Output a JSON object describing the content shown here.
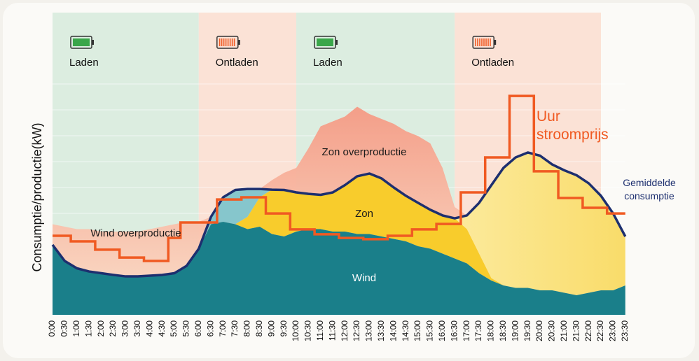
{
  "chart_data": {
    "type": "area",
    "ylabel": "Consumptie/productie(kW)",
    "categories": [
      "0:00",
      "0:30",
      "1:00",
      "1:30",
      "2:00",
      "2:30",
      "3:00",
      "3:30",
      "4:00",
      "4:30",
      "5:00",
      "5:30",
      "6:00",
      "6:30",
      "7:00",
      "7:30",
      "8:00",
      "8:30",
      "9:00",
      "9:30",
      "10:00",
      "10:30",
      "11:00",
      "11:30",
      "12:00",
      "12:30",
      "13:00",
      "13:30",
      "14:00",
      "14:30",
      "15:00",
      "15:30",
      "16:00",
      "16:30",
      "17:00",
      "17:30",
      "18:00",
      "18:30",
      "19:00",
      "19:30",
      "20:00",
      "20:30",
      "21:00",
      "21:30",
      "22:00",
      "22:30",
      "23:00",
      "23:30"
    ],
    "ylim": [
      0,
      100
    ],
    "y2lim": [
      0,
      100
    ],
    "bands": [
      {
        "label": "Laden",
        "start": 0,
        "end": 6,
        "color": "#dcede0",
        "icon_color": "#3aa64a"
      },
      {
        "label": "Ontladen",
        "start": 6,
        "end": 10,
        "color": "#fbe2d6",
        "icon_color": "#f05a22"
      },
      {
        "label": "Laden",
        "start": 10,
        "end": 16.5,
        "color": "#dcede0",
        "icon_color": "#3aa64a"
      },
      {
        "label": "Ontladen",
        "start": 16.5,
        "end": 22.5,
        "color": "#fbe2d6",
        "icon_color": "#f05a22"
      }
    ],
    "series": [
      {
        "name": "Wind",
        "color": "#1a7f8a",
        "values": [
          37,
          36,
          35,
          35,
          34,
          34,
          34,
          34,
          35,
          36,
          37,
          38,
          38,
          37,
          38,
          37,
          35,
          36,
          33,
          32,
          34,
          35,
          35,
          34,
          34,
          33,
          33,
          32,
          31,
          30,
          28,
          27,
          25,
          23,
          21,
          17,
          14,
          12,
          11,
          11,
          10,
          10,
          9,
          8,
          9,
          10,
          10,
          12
        ]
      },
      {
        "name": "Zon",
        "color": "#f8cc2c",
        "values": [
          0,
          0,
          0,
          0,
          0,
          0,
          0,
          0,
          0,
          0,
          0,
          0,
          0,
          0,
          0,
          0,
          5,
          12,
          22,
          26,
          26,
          33,
          42,
          45,
          47,
          52,
          49,
          48,
          47,
          45,
          45,
          43,
          35,
          21,
          14,
          8,
          1,
          0,
          0,
          0,
          0,
          0,
          0,
          0,
          0,
          0,
          0,
          0
        ]
      },
      {
        "name": "Gemiddelde consumptie",
        "color": "#1d2f6f",
        "values": [
          28.6,
          22,
          19,
          17.7,
          17,
          16.3,
          15.7,
          15.7,
          16,
          16.3,
          17,
          20,
          27,
          40,
          48,
          51,
          51.4,
          51.4,
          51.1,
          51,
          50,
          49.4,
          49,
          50,
          53,
          56.6,
          57.7,
          55.7,
          52,
          48.6,
          45.7,
          42.9,
          40.6,
          39.4,
          40.6,
          45.7,
          52.9,
          60,
          64.3,
          66.3,
          65,
          61.4,
          59,
          57,
          53.7,
          48.6,
          41.4,
          32
        ]
      },
      {
        "name": "Uur stroomprijs",
        "color": "#f05a22",
        "axis": "y2",
        "values": [
          32.3,
          32.3,
          30,
          30,
          26.6,
          26.6,
          23.4,
          23.4,
          22,
          22,
          31.4,
          37.7,
          37.7,
          37.7,
          47.1,
          47.1,
          48,
          48,
          41.4,
          41.4,
          34.9,
          34.9,
          32.9,
          32.9,
          31.4,
          31.4,
          30.9,
          30.9,
          32.3,
          32.3,
          34.9,
          34.9,
          37.1,
          37.1,
          50,
          50,
          64.3,
          64.3,
          89.4,
          89.4,
          58.6,
          58.6,
          47.7,
          47.7,
          43.7,
          43.7,
          41.4,
          41.4
        ]
      }
    ],
    "annotations": [
      "Wind overproductie",
      "Zon overproductie",
      "Zon",
      "Wind"
    ]
  }
}
